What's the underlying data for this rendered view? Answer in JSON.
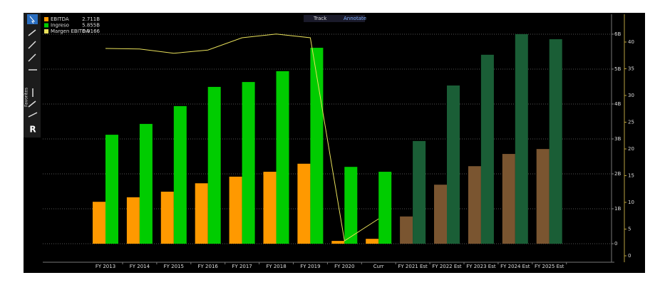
{
  "chart_data": {
    "type": "bar",
    "categories": [
      "FY 2013",
      "FY 2014",
      "FY 2015",
      "FY 2016",
      "FY 2017",
      "FY 2018",
      "FY 2019",
      "FY 2020",
      "Curr",
      "FY 2021 Est",
      "FY 2022 Est",
      "FY 2023 Est",
      "FY 2024 Est",
      "FY 2025 Est"
    ],
    "series": [
      {
        "name": "EBITDA",
        "legend_label": "2.711B",
        "color": "#ff9900",
        "colors": [
          "#ff9900",
          "#ff9900",
          "#ff9900",
          "#ff9900",
          "#ff9900",
          "#ff9900",
          "#ff9900",
          "#ff9900",
          "#ff9900",
          "#7a5530",
          "#7a5530",
          "#7a5530",
          "#7a5530",
          "#7a5530"
        ],
        "values": [
          1200000000,
          1330000000,
          1490000000,
          1730000000,
          1920000000,
          2060000000,
          2290000000,
          80000000,
          140000000,
          780000000,
          1690000000,
          2220000000,
          2570000000,
          2711000000
        ]
      },
      {
        "name": "Ingreso",
        "legend_label": "5.855B",
        "color": "#00cc00",
        "colors": [
          "#00cc00",
          "#00cc00",
          "#00cc00",
          "#00cc00",
          "#00cc00",
          "#00cc00",
          "#00cc00",
          "#00cc00",
          "#00cc00",
          "#1a5e36",
          "#1a5e36",
          "#1a5e36",
          "#1a5e36",
          "#1a5e36"
        ],
        "values": [
          3120000000,
          3430000000,
          3940000000,
          4490000000,
          4630000000,
          4940000000,
          5610000000,
          2200000000,
          2060000000,
          2940000000,
          4530000000,
          5410000000,
          6000000000,
          5855000000
        ]
      },
      {
        "name": "Margen EBITDA",
        "legend_label": "6.9166",
        "color": "#e8e05a",
        "type": "line",
        "axis": "y2",
        "values": [
          38.8,
          38.7,
          37.9,
          38.5,
          40.8,
          41.5,
          40.8,
          2.8,
          6.9166,
          null,
          null,
          null,
          null,
          null
        ]
      }
    ],
    "ylim": [
      -530000000,
      6570000000
    ],
    "yticks": [
      0,
      {
        "value": 1000000000,
        "label": "1B"
      },
      {
        "value": 2000000000,
        "label": "2B"
      },
      {
        "value": 3000000000,
        "label": "3B"
      },
      {
        "value": 4000000000,
        "label": "4B"
      },
      {
        "value": 5000000000,
        "label": "5B"
      },
      {
        "value": 6000000000,
        "label": "6B"
      }
    ],
    "y2lim": [
      -1.2,
      45.2
    ],
    "y2ticks": [
      0,
      5,
      10,
      15,
      20,
      25,
      30,
      35,
      40
    ],
    "grid": true
  },
  "toolbar": {
    "track": "Track",
    "annotate": "Annotate",
    "favorites": "Favorites"
  }
}
